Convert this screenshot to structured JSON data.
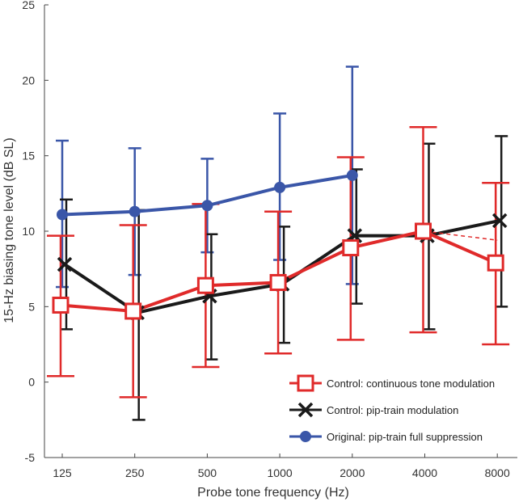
{
  "chart_data": {
    "type": "line",
    "title": "",
    "xlabel": "Probe tone frequency (Hz)",
    "ylabel": "15-Hz biasing tone level (dB SL)",
    "ylim": [
      -5,
      25
    ],
    "yticks": [
      -5,
      0,
      5,
      10,
      15,
      20,
      25
    ],
    "categories": [
      "125",
      "250",
      "500",
      "1000",
      "2000",
      "4000",
      "8000"
    ],
    "grid": false,
    "legend_position": "bottom-right",
    "series": [
      {
        "name": "Original: pip-train full suppression",
        "color": "#3a56a8",
        "marker": "circle",
        "x": [
          0,
          1,
          2,
          3,
          4
        ],
        "values": [
          11.1,
          11.3,
          11.7,
          12.9,
          13.7
        ],
        "err_low": [
          6.3,
          7.1,
          8.6,
          8.1,
          6.5
        ],
        "err_high": [
          16.0,
          15.5,
          14.8,
          17.8,
          20.9
        ]
      },
      {
        "name": "Control: continuous tone modulation",
        "color": "#e02a2a",
        "marker": "square",
        "x": [
          0,
          1,
          2,
          3,
          4,
          5,
          6
        ],
        "values": [
          5.1,
          4.7,
          6.4,
          6.6,
          8.9,
          10.0,
          7.9
        ],
        "err_low": [
          0.4,
          -1.0,
          1.0,
          1.9,
          2.8,
          3.3,
          2.5
        ],
        "err_high": [
          9.7,
          10.4,
          11.8,
          11.3,
          14.9,
          16.9,
          13.2
        ]
      },
      {
        "name": "Control: pip-train modulation",
        "color": "#1a1a1a",
        "marker": "x",
        "x": [
          0,
          1,
          2,
          3,
          4,
          5,
          6
        ],
        "values": [
          7.8,
          4.6,
          5.7,
          6.5,
          9.7,
          9.7,
          10.7
        ],
        "err_low": [
          3.5,
          -2.5,
          1.5,
          2.6,
          5.2,
          3.5,
          5.0
        ],
        "err_high": [
          12.1,
          11.4,
          9.8,
          10.3,
          14.1,
          15.8,
          16.3
        ]
      }
    ],
    "annotations": [
      {
        "kind": "dashed-line",
        "color": "#e02a2a",
        "from": [
          5,
          10.0
        ],
        "to": [
          6,
          9.4
        ]
      }
    ]
  }
}
